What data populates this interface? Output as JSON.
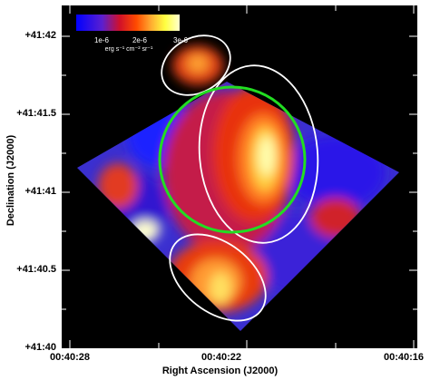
{
  "axes": {
    "xlabel": "Right Ascension (J2000)",
    "ylabel": "Declination (J2000)",
    "xticks": [
      "00:40:28",
      "00:40:22",
      "00:40:16"
    ],
    "yticks": [
      "+41:42",
      "+41:41.5",
      "+41:41",
      "+41:40.5",
      "+41:40"
    ]
  },
  "colorbar": {
    "ticks": [
      "1e-6",
      "2e-6",
      "3e-6"
    ],
    "unit": "erg s⁻¹ cm⁻² sr⁻¹",
    "colors": [
      "#0000ff",
      "#5a1fd0",
      "#d0102a",
      "#ff4a00",
      "#ffaa30",
      "#ffff40",
      "#ffffd0"
    ]
  },
  "overlays": {
    "circle_color": "#22dd22",
    "ellipse_color": "#ffffff"
  }
}
